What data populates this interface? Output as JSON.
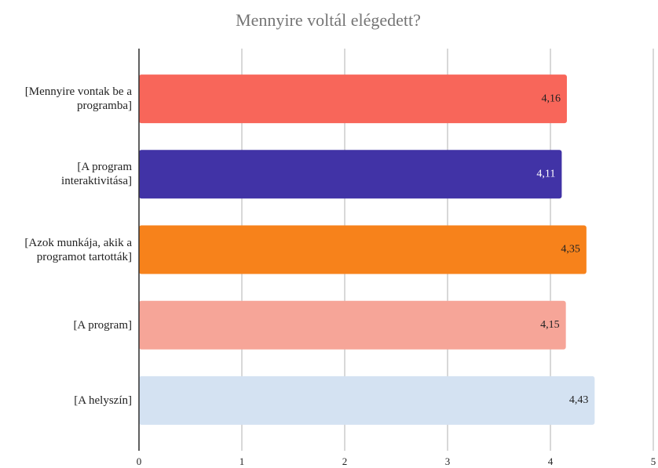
{
  "chart_data": {
    "type": "hbar",
    "title": "Mennyire voltál elégedett?",
    "categories": [
      "[Mennyire vontak be a programba]",
      "[A program interaktivitása]",
      "[Azok munkája, akik a programot tartották]",
      "[A program]",
      "[A helyszín]"
    ],
    "values": [
      4.16,
      4.11,
      4.35,
      4.15,
      4.43
    ],
    "value_labels": [
      "4,16",
      "4,11",
      "4,35",
      "4,15",
      "4,43"
    ],
    "colors": [
      "#f8665a",
      "#4133a6",
      "#f7821b",
      "#f6a598",
      "#d4e2f2"
    ],
    "value_label_colors": [
      "#222222",
      "#ffffff",
      "#222222",
      "#222222",
      "#222222"
    ],
    "xlim": [
      0,
      5
    ],
    "xticks": [
      0,
      1,
      2,
      3,
      4,
      5
    ],
    "grid": true
  }
}
